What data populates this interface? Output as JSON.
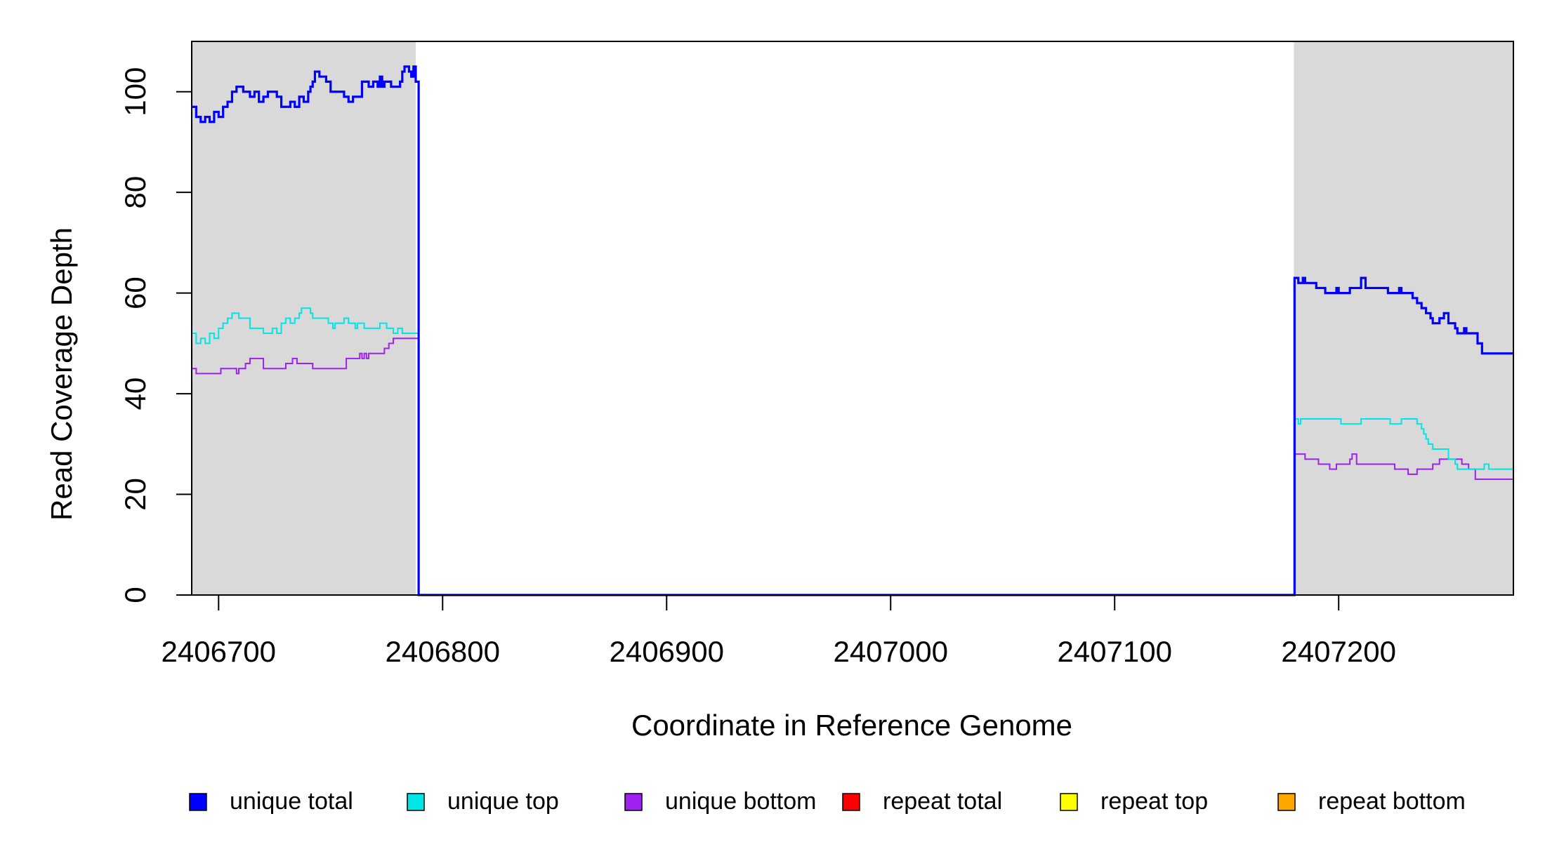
{
  "chart_data": {
    "type": "line",
    "step": true,
    "xlabel": "Coordinate in Reference Genome",
    "ylabel": "Read Coverage Depth",
    "xlim": [
      2406688,
      2407278
    ],
    "ylim": [
      0,
      110
    ],
    "x_ticks": [
      2406700,
      2406800,
      2406900,
      2407000,
      2407100,
      2407200
    ],
    "y_ticks": [
      0,
      20,
      40,
      60,
      80,
      100
    ],
    "shaded_regions": [
      {
        "x": [
          2406688,
          2406788
        ],
        "color": "#d9d9d9"
      },
      {
        "x": [
          2407180,
          2407278
        ],
        "color": "#d9d9d9"
      }
    ],
    "series": [
      {
        "name": "unique total",
        "color": "#0000ff",
        "points": [
          [
            2406688,
            97
          ],
          [
            2406690,
            95
          ],
          [
            2406692,
            94
          ],
          [
            2406694,
            95
          ],
          [
            2406696,
            94
          ],
          [
            2406698,
            96
          ],
          [
            2406700,
            95
          ],
          [
            2406702,
            97
          ],
          [
            2406704,
            98
          ],
          [
            2406706,
            100
          ],
          [
            2406708,
            101
          ],
          [
            2406711,
            100
          ],
          [
            2406714,
            99
          ],
          [
            2406716,
            100
          ],
          [
            2406718,
            98
          ],
          [
            2406720,
            99
          ],
          [
            2406722,
            100
          ],
          [
            2406726,
            99
          ],
          [
            2406728,
            97
          ],
          [
            2406732,
            98
          ],
          [
            2406734,
            97
          ],
          [
            2406736,
            99
          ],
          [
            2406738,
            98
          ],
          [
            2406740,
            100
          ],
          [
            2406741,
            101
          ],
          [
            2406742,
            102
          ],
          [
            2406743,
            104
          ],
          [
            2406745,
            103
          ],
          [
            2406748,
            102
          ],
          [
            2406750,
            100
          ],
          [
            2406756,
            99
          ],
          [
            2406758,
            98
          ],
          [
            2406760,
            99
          ],
          [
            2406764,
            102
          ],
          [
            2406767,
            101
          ],
          [
            2406769,
            102
          ],
          [
            2406771,
            101
          ],
          [
            2406772,
            103
          ],
          [
            2406773,
            101
          ],
          [
            2406774,
            102
          ],
          [
            2406777,
            101
          ],
          [
            2406781,
            102
          ],
          [
            2406782,
            104
          ],
          [
            2406783,
            105
          ],
          [
            2406785,
            104
          ],
          [
            2406786,
            103
          ],
          [
            2406787,
            105
          ],
          [
            2406788,
            102
          ],
          [
            2406789,
            102
          ],
          [
            2406789.3,
            0
          ],
          [
            2407180,
            0
          ],
          [
            2407180.3,
            63
          ],
          [
            2407182,
            62
          ],
          [
            2407184,
            63
          ],
          [
            2407185,
            62
          ],
          [
            2407190,
            61
          ],
          [
            2407194,
            60
          ],
          [
            2407199,
            61
          ],
          [
            2407200,
            60
          ],
          [
            2407205,
            61
          ],
          [
            2407210,
            63
          ],
          [
            2407212,
            61
          ],
          [
            2407222,
            60
          ],
          [
            2407227,
            61
          ],
          [
            2407228,
            60
          ],
          [
            2407233,
            59
          ],
          [
            2407235,
            58
          ],
          [
            2407237,
            57
          ],
          [
            2407239,
            56
          ],
          [
            2407241,
            55
          ],
          [
            2407242,
            54
          ],
          [
            2407245,
            55
          ],
          [
            2407247,
            56
          ],
          [
            2407249,
            54
          ],
          [
            2407252,
            53
          ],
          [
            2407253,
            52
          ],
          [
            2407256,
            53
          ],
          [
            2407257,
            52
          ],
          [
            2407262,
            50
          ],
          [
            2407264,
            48
          ],
          [
            2407278,
            48
          ]
        ]
      },
      {
        "name": "unique top",
        "color": "#00e5e5",
        "points": [
          [
            2406688,
            52
          ],
          [
            2406690,
            50
          ],
          [
            2406692,
            51
          ],
          [
            2406694,
            50
          ],
          [
            2406696,
            52
          ],
          [
            2406698,
            51
          ],
          [
            2406700,
            53
          ],
          [
            2406702,
            54
          ],
          [
            2406704,
            55
          ],
          [
            2406706,
            56
          ],
          [
            2406709,
            55
          ],
          [
            2406714,
            53
          ],
          [
            2406720,
            52
          ],
          [
            2406724,
            53
          ],
          [
            2406726,
            52
          ],
          [
            2406728,
            54
          ],
          [
            2406730,
            55
          ],
          [
            2406732,
            54
          ],
          [
            2406734,
            55
          ],
          [
            2406736,
            56
          ],
          [
            2406737,
            57
          ],
          [
            2406741,
            56
          ],
          [
            2406742,
            55
          ],
          [
            2406749,
            54
          ],
          [
            2406751,
            53
          ],
          [
            2406752,
            54
          ],
          [
            2406756,
            55
          ],
          [
            2406758,
            54
          ],
          [
            2406761,
            53
          ],
          [
            2406762,
            54
          ],
          [
            2406765,
            53
          ],
          [
            2406772,
            54
          ],
          [
            2406775,
            53
          ],
          [
            2406778,
            52
          ],
          [
            2406780,
            53
          ],
          [
            2406782,
            52
          ],
          [
            2406789.3,
            0
          ],
          [
            2407180,
            0
          ],
          [
            2407180.3,
            35
          ],
          [
            2407182,
            34
          ],
          [
            2407183,
            35
          ],
          [
            2407201,
            34
          ],
          [
            2407210,
            35
          ],
          [
            2407223,
            34
          ],
          [
            2407228,
            35
          ],
          [
            2407235,
            34
          ],
          [
            2407237,
            33
          ],
          [
            2407238,
            32
          ],
          [
            2407239,
            31
          ],
          [
            2407240,
            30
          ],
          [
            2407242,
            29
          ],
          [
            2407249,
            27
          ],
          [
            2407252,
            26
          ],
          [
            2407253,
            25
          ],
          [
            2407265,
            26
          ],
          [
            2407267,
            25
          ],
          [
            2407278,
            25
          ]
        ]
      },
      {
        "name": "unique bottom",
        "color": "#a020f0",
        "points": [
          [
            2406688,
            45
          ],
          [
            2406690,
            44
          ],
          [
            2406701,
            45
          ],
          [
            2406708,
            44
          ],
          [
            2406709,
            45
          ],
          [
            2406712,
            46
          ],
          [
            2406714,
            47
          ],
          [
            2406720,
            45
          ],
          [
            2406730,
            46
          ],
          [
            2406733,
            47
          ],
          [
            2406735,
            46
          ],
          [
            2406742,
            45
          ],
          [
            2406757,
            47
          ],
          [
            2406763,
            48
          ],
          [
            2406764,
            47
          ],
          [
            2406765,
            48
          ],
          [
            2406766,
            47
          ],
          [
            2406767,
            48
          ],
          [
            2406774,
            49
          ],
          [
            2406776,
            50
          ],
          [
            2406778,
            51
          ],
          [
            2406782,
            51
          ],
          [
            2406786,
            51
          ],
          [
            2406789.3,
            0
          ],
          [
            2407180,
            0
          ],
          [
            2407180.3,
            28
          ],
          [
            2407185,
            27
          ],
          [
            2407191,
            26
          ],
          [
            2407196,
            25
          ],
          [
            2407199,
            26
          ],
          [
            2407205,
            27
          ],
          [
            2407206,
            28
          ],
          [
            2407208,
            26
          ],
          [
            2407214,
            26
          ],
          [
            2407225,
            25
          ],
          [
            2407231,
            24
          ],
          [
            2407235,
            25
          ],
          [
            2407242,
            26
          ],
          [
            2407245,
            27
          ],
          [
            2407255,
            26
          ],
          [
            2407258,
            25
          ],
          [
            2407261,
            23
          ],
          [
            2407278,
            23
          ]
        ]
      },
      {
        "name": "repeat total",
        "color": "#ff0000",
        "points": [
          [
            2406688,
            0
          ],
          [
            2407278,
            0
          ]
        ]
      },
      {
        "name": "repeat top",
        "color": "#ffff00",
        "points": [
          [
            2406688,
            0
          ],
          [
            2407278,
            0
          ]
        ]
      },
      {
        "name": "repeat bottom",
        "color": "#ffa500",
        "points": [
          [
            2406688,
            0
          ],
          [
            2407278,
            0
          ]
        ]
      }
    ],
    "legend": {
      "placement": "bottom",
      "entries": [
        {
          "label": "unique total",
          "color": "#0000ff"
        },
        {
          "label": "unique top",
          "color": "#00e5e5"
        },
        {
          "label": "unique bottom",
          "color": "#a020f0"
        },
        {
          "label": "repeat total",
          "color": "#ff0000"
        },
        {
          "label": "repeat top",
          "color": "#ffff00"
        },
        {
          "label": "repeat bottom",
          "color": "#ffa500"
        }
      ]
    }
  }
}
